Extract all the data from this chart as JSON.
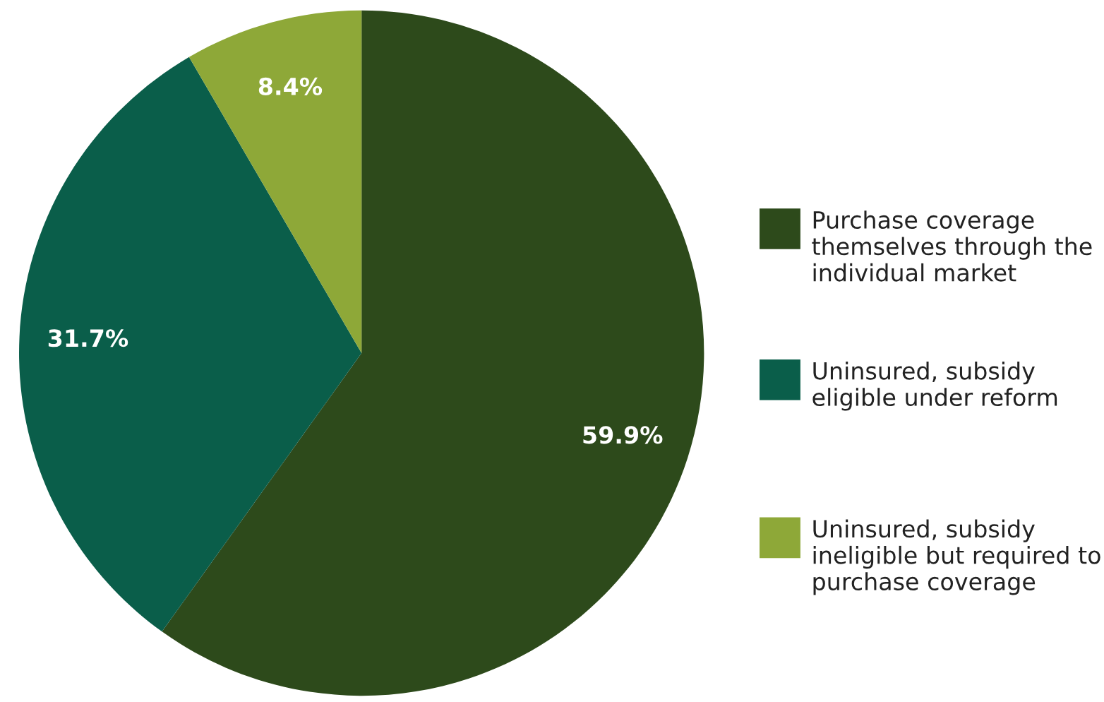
{
  "chart_data": {
    "type": "pie",
    "categories": [
      "Purchase coverage themselves through the individual market",
      "Uninsured, subsidy eligible under reform",
      "Uninsured, subsidy ineligible but required to purchase coverage"
    ],
    "values": [
      59.9,
      31.7,
      8.4
    ],
    "colors": [
      "#2d4a1b",
      "#0a5e4a",
      "#8ea838"
    ],
    "value_labels": [
      "59.9%",
      "31.7%",
      "8.4%"
    ],
    "legend": "right"
  }
}
